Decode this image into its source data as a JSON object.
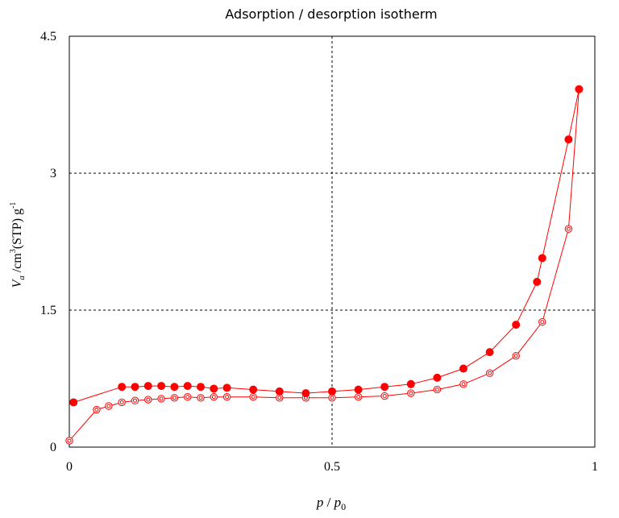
{
  "chart_data": {
    "type": "scatter",
    "title": "Adsorption / desorption isotherm",
    "xlabel": {
      "main": "p",
      "sep": " / ",
      "p0": "p",
      "p0_sub": "0"
    },
    "ylabel": {
      "v": "V",
      "v_sub": "a",
      "slash": " /cm",
      "sup3": "3",
      "stp": "(STP) g",
      "supm1": "-1"
    },
    "xlim": [
      0,
      1
    ],
    "ylim": [
      0,
      4.5
    ],
    "x_ticks": [
      {
        "value": 0,
        "label": "0"
      },
      {
        "value": 0.5,
        "label": "0.5"
      },
      {
        "value": 1,
        "label": "1"
      }
    ],
    "y_ticks": [
      {
        "value": 0,
        "label": "0"
      },
      {
        "value": 1.5,
        "label": "1.5"
      },
      {
        "value": 3,
        "label": "3"
      },
      {
        "value": 4.5,
        "label": "4.5"
      }
    ],
    "grid": {
      "x": [
        0.5
      ],
      "y": [
        1.5,
        3.0
      ],
      "style": "dashed"
    },
    "colors": {
      "series": "#ff0000",
      "axis": "#000000",
      "grid": "#000000"
    },
    "series": [
      {
        "marker": "open-circle",
        "x": [
          0.0,
          0.052,
          0.075,
          0.1,
          0.125,
          0.15,
          0.175,
          0.2,
          0.225,
          0.25,
          0.275,
          0.3,
          0.35,
          0.4,
          0.45,
          0.5,
          0.55,
          0.6,
          0.65,
          0.7,
          0.75,
          0.8,
          0.85,
          0.9,
          0.95,
          0.97
        ],
        "y": [
          0.07,
          0.41,
          0.45,
          0.49,
          0.51,
          0.52,
          0.53,
          0.54,
          0.55,
          0.54,
          0.55,
          0.55,
          0.55,
          0.54,
          0.54,
          0.54,
          0.55,
          0.56,
          0.59,
          0.63,
          0.69,
          0.81,
          1.0,
          1.37,
          2.39,
          3.92
        ]
      },
      {
        "marker": "filled-circle",
        "x": [
          0.97,
          0.95,
          0.9,
          0.89,
          0.85,
          0.8,
          0.75,
          0.7,
          0.65,
          0.6,
          0.55,
          0.5,
          0.45,
          0.4,
          0.35,
          0.3,
          0.275,
          0.25,
          0.225,
          0.2,
          0.175,
          0.15,
          0.125,
          0.1,
          0.008
        ],
        "y": [
          3.92,
          3.37,
          2.07,
          1.81,
          1.34,
          1.04,
          0.86,
          0.76,
          0.69,
          0.66,
          0.63,
          0.61,
          0.59,
          0.61,
          0.63,
          0.65,
          0.64,
          0.66,
          0.67,
          0.66,
          0.67,
          0.67,
          0.66,
          0.66,
          0.49
        ]
      }
    ]
  }
}
